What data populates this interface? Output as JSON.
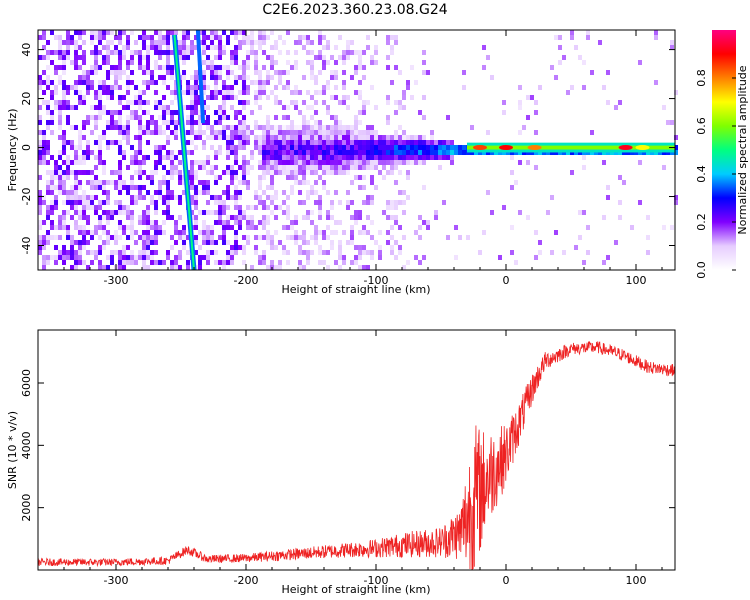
{
  "title": "C2E6.2023.360.23.08.G24",
  "chart_data": [
    {
      "type": "heatmap",
      "xlabel": "Height of straight line (km)",
      "ylabel": "Frequency (Hz)",
      "xlim": [
        -360,
        130
      ],
      "ylim": [
        -50,
        48
      ],
      "xticks": [
        -300,
        -200,
        -100,
        0,
        100
      ],
      "yticks": [
        -40,
        -20,
        0,
        20,
        40
      ],
      "colorbar": {
        "label": "Normalized spectral amplitude",
        "range": [
          0.0,
          1.0
        ],
        "ticks": [
          0.0,
          0.2,
          0.4,
          0.6,
          0.8
        ],
        "colors": [
          "#ffffff",
          "#e6ccff",
          "#8000ff",
          "#0000ff",
          "#00ccff",
          "#00ff80",
          "#80ff00",
          "#ffff00",
          "#ff8000",
          "#ff0000",
          "#ff0080"
        ]
      },
      "features": {
        "stripe_1": {
          "x_at_top": -255,
          "x_at_bottom": -240
        },
        "stripe_2": {
          "x_at_top": -237,
          "x_at_bottom": -233,
          "y_end": 10
        },
        "carrier_line": {
          "x_range": [
            -190,
            130
          ],
          "frequency": 0
        }
      }
    },
    {
      "type": "line",
      "xlabel": "Height of straight line (km)",
      "ylabel": "SNR (10 * v/v)",
      "xlim": [
        -360,
        130
      ],
      "ylim": [
        0,
        7700
      ],
      "xticks": [
        -300,
        -200,
        -100,
        0,
        100
      ],
      "yticks": [
        2000,
        4000,
        6000
      ],
      "series": [
        {
          "color": "#ee2222",
          "x": [
            -360,
            -300,
            -260,
            -245,
            -230,
            -200,
            -150,
            -120,
            -100,
            -80,
            -50,
            -35,
            -25,
            -15,
            0,
            10,
            20,
            30,
            50,
            70,
            90,
            110,
            130
          ],
          "y": [
            250,
            250,
            300,
            650,
            350,
            380,
            550,
            650,
            700,
            800,
            900,
            1200,
            2200,
            2900,
            3700,
            4700,
            5800,
            6700,
            7100,
            7150,
            6900,
            6500,
            6400
          ],
          "spread": [
            120,
            120,
            130,
            150,
            130,
            140,
            200,
            250,
            300,
            400,
            500,
            900,
            2600,
            1600,
            1000,
            700,
            500,
            300,
            200,
            200,
            200,
            200,
            200
          ]
        }
      ]
    }
  ]
}
